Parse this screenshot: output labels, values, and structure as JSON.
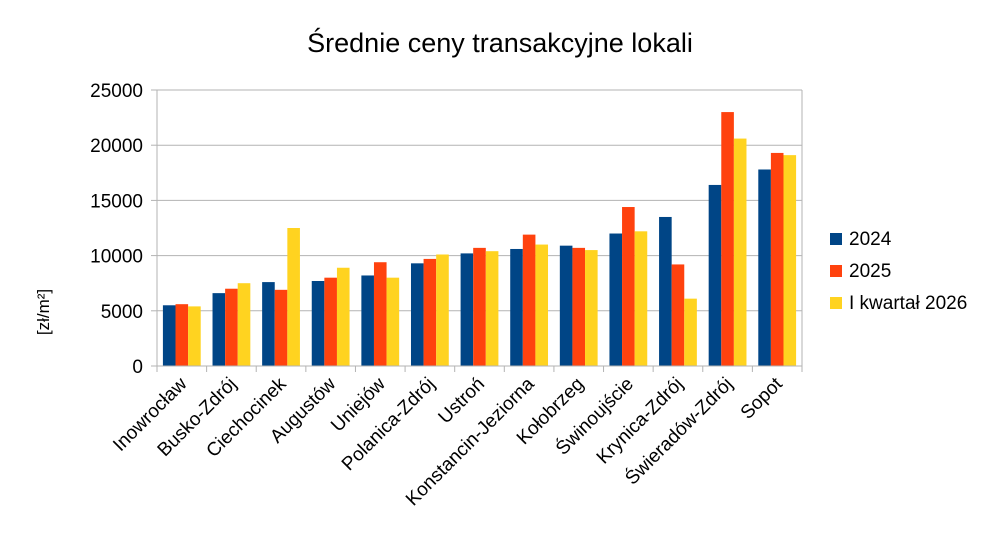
{
  "chart_data": {
    "type": "bar",
    "title": "Średnie ceny transakcyjne lokali",
    "xlabel": "",
    "ylabel": "[zł/m²]",
    "ylim": [
      0,
      25000
    ],
    "yticks": [
      0,
      5000,
      10000,
      15000,
      20000,
      25000
    ],
    "grid": true,
    "legend_position": "right",
    "categories": [
      "Inowrocław",
      "Busko-Zdrój",
      "Ciechocinek",
      "Augustów",
      "Uniejów",
      "Polanica-Zdrój",
      "Ustroń",
      "Konstancin-Jeziorna",
      "Kołobrzeg",
      "Świnoujście",
      "Krynica-Zdrój",
      "Świeradów-Zdrój",
      "Sopot"
    ],
    "series": [
      {
        "name": "2024",
        "color": "#004586",
        "values": [
          5500,
          6600,
          7600,
          7700,
          8200,
          9300,
          10200,
          10600,
          10900,
          12000,
          13500,
          16400,
          17800
        ]
      },
      {
        "name": "2025",
        "color": "#ff420e",
        "values": [
          5600,
          7000,
          6900,
          8000,
          9400,
          9700,
          10700,
          11900,
          10700,
          14400,
          9200,
          23000,
          19300
        ]
      },
      {
        "name": "I kwartał 2026",
        "color": "#ffd320",
        "values": [
          5400,
          7500,
          12500,
          8900,
          8000,
          10100,
          10400,
          11000,
          10500,
          12200,
          6100,
          20600,
          19100
        ]
      }
    ]
  }
}
